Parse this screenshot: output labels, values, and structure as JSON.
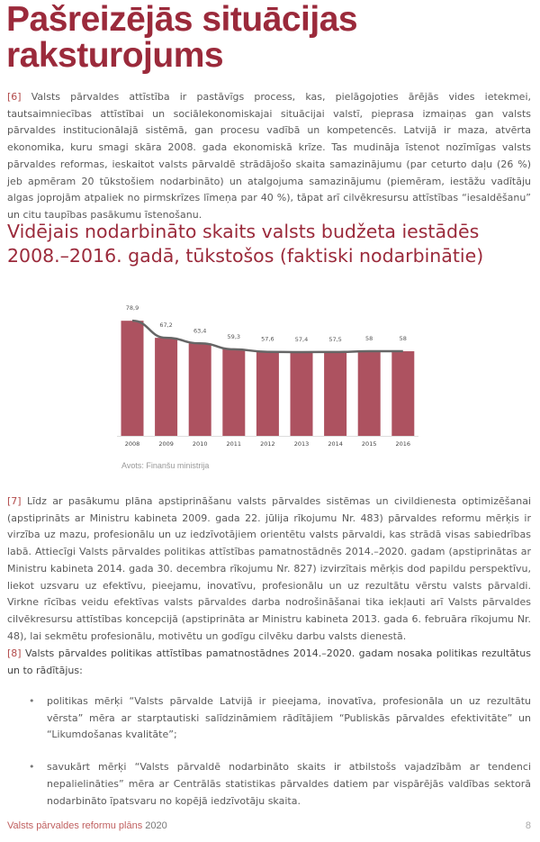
{
  "title": "Pašreizējās situācijas raksturojums",
  "p6": {
    "num": "[6]",
    "text": "Valsts pārvaldes attīstība ir pastāvīgs process, kas, pielāgojoties ārējās vides ietekmei, tautsaimniecības attīstībai un sociālekonomiskajai situācijai valstī, pieprasa izmaiņas gan valsts pārvaldes institucionālajā sistēmā, gan procesu vadībā un kompetencēs. Latvijā ir maza, atvērta ekonomika, kuru smagi skāra 2008. gada ekonomiskā krīze. Tas mudināja īstenot nozīmīgas valsts pārvaldes reformas, ieskaitot valsts pārvaldē strādājošo skaita samazinājumu (par ceturto daļu (26 %) jeb apmēram 20 tūkstošiem nodarbināto) un atalgojuma samazinājumu (piemēram, iestāžu vadītāju algas joprojām atpaliek no pirmskrīzes līmeņa par 40 %), tāpat arī cilvēkresursu attīstības “iesaldēšanu” un citu taupības pasākumu īstenošanu."
  },
  "chart_heading": "Vidējais nodarbināto skaits valsts budžeta iestādēs 2008.–2016. gadā, tūkstošos (faktiski nodarbinātie)",
  "chart_data": {
    "type": "bar",
    "title": "Vidējais nodarbināto skaits valsts budžeta iestādēs 2008.–2016. gadā, tūkstošos (faktiski nodarbinātie)",
    "categories": [
      "2008",
      "2009",
      "2010",
      "2011",
      "2012",
      "2013",
      "2014",
      "2015",
      "2016"
    ],
    "values": [
      78.9,
      67.2,
      63.4,
      59.3,
      57.6,
      57.4,
      57.5,
      58,
      58
    ],
    "labels": [
      "78,9",
      "67,2",
      "63,4",
      "59,3",
      "57,6",
      "57,4",
      "57,5",
      "58",
      "58"
    ],
    "trendline": true,
    "ylim": [
      0,
      95
    ],
    "xlabel": "",
    "ylabel": "",
    "grid": false,
    "colors": {
      "bar": "#ad5260",
      "trend": "#666666"
    }
  },
  "source": "Avots: Finanšu ministrija",
  "p7": {
    "num": "[7]",
    "text": "Līdz ar pasākumu plāna apstiprināšanu valsts pārvaldes sistēmas un civildienesta optimizēšanai (apstiprināts ar Ministru kabineta 2009. gada 22. jūlija rīkojumu Nr. 483) pārvaldes reformu mērķis ir virzība uz mazu, profesionālu un uz iedzīvotājiem orientētu valsts pārvaldi, kas strādā visas sabiedrības labā. Attiecīgi Valsts pārvaldes politikas attīstības pamatnostādnēs 2014.–2020. gadam (apstiprinātas ar Ministru kabineta 2014. gada 30. decembra rīkojumu Nr. 827) izvirzītais mērķis dod papildu perspektīvu, liekot uzsvaru uz efektīvu, pieejamu, inovatīvu, profesionālu un uz rezultātu vērstu valsts pārvaldi. Virkne rīcības veidu efektīvas valsts pārvaldes darba nodrošināšanai tika iekļauti arī Valsts pārvaldes cilvēkresursu attīstības koncepcijā (apstiprināta ar Ministru kabineta 2013. gada 6. februāra rīkojumu Nr. 48), lai sekmētu profesionālu, motivētu un godīgu cilvēku darbu valsts dienestā."
  },
  "p8": {
    "num": "[8]",
    "text": "Valsts pārvaldes politikas attīstības pamatnostādnes 2014.–2020. gadam nosaka politikas rezultātus un to rādītājus:"
  },
  "bullets": [
    {
      "marker": "•",
      "text": "politikas mērķi “Valsts pārvalde Latvijā ir pieejama, inovatīva, profesionāla un uz rezultātu vērsta” mēra ar starptautiski salīdzināmiem rādītājiem “Publiskās pārvaldes efektivitāte” un “Likumdošanas kvalitāte”;"
    },
    {
      "marker": "•",
      "text": "savukārt mērķi “Valsts pārvaldē nodarbināto skaits ir atbilstošs vajadzībām ar tendenci nepalielināties” mēra ar Centrālās statistikas pārvaldes datiem par vispārējās valdības sektorā nodarbināto īpatsvaru no kopējā iedzīvotāju skaita."
    }
  ],
  "footer": {
    "title": "Valsts pārvaldes reformu plāns",
    "year": "2020",
    "page": "8"
  }
}
